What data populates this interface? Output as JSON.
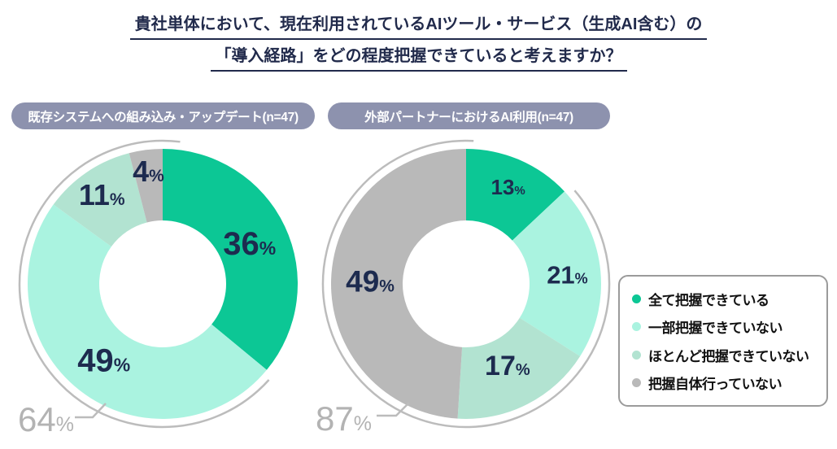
{
  "title": {
    "line1": "貴社単体において、現在利用されているAIツール・サービス（生成AI含む）の",
    "line2": "「導入経路」をどの程度把握できていると考えますか？"
  },
  "charts": [
    {
      "header": "既存システムへの組み込み・アップデート(n=47)"
    },
    {
      "header": "外部パートナーにおけるAI利用(n=47)"
    }
  ],
  "chart_data": [
    {
      "type": "pie",
      "donut": true,
      "title": "既存システムへの組み込み・アップデート(n=47)",
      "n": 47,
      "categories": [
        "全て把握できている",
        "一部把握できていない",
        "ほとんど把握できていない",
        "把握自体行っていない"
      ],
      "values": [
        36,
        49,
        11,
        4
      ],
      "unit": "%",
      "colors": [
        "#0cc795",
        "#aaf3e0",
        "#b2e3d1",
        "#b9b9b9"
      ],
      "start_angle_deg": 0,
      "direction": "clockwise",
      "bracket": {
        "value": 64,
        "unit": "%",
        "spans": [
          49,
          11,
          4
        ]
      }
    },
    {
      "type": "pie",
      "donut": true,
      "title": "外部パートナーにおけるAI利用(n=47)",
      "n": 47,
      "categories": [
        "全て把握できている",
        "一部把握できていない",
        "ほとんど把握できていない",
        "把握自体行っていない"
      ],
      "values": [
        13,
        21,
        17,
        49
      ],
      "unit": "%",
      "colors": [
        "#0cc795",
        "#aaf3e0",
        "#b2e3d1",
        "#b9b9b9"
      ],
      "start_angle_deg": 0,
      "direction": "clockwise",
      "bracket": {
        "value": 87,
        "unit": "%",
        "spans": [
          21,
          17,
          49
        ]
      }
    }
  ],
  "legend": {
    "position": "right",
    "items": [
      {
        "label": "全て把握できている",
        "color": "#0cc795"
      },
      {
        "label": "一部把握できていない",
        "color": "#aaf3e0"
      },
      {
        "label": "ほとんど把握できていない",
        "color": "#b2e3d1"
      },
      {
        "label": "把握自体行っていない",
        "color": "#b9b9b9"
      }
    ]
  },
  "palette": {
    "title_navy": "#212a4b",
    "label_navy": "#1d2b4f",
    "header_pill": "#8d92ae",
    "bracket_gray": "#b3b3b3",
    "arc_gray": "#bcbcbc"
  }
}
